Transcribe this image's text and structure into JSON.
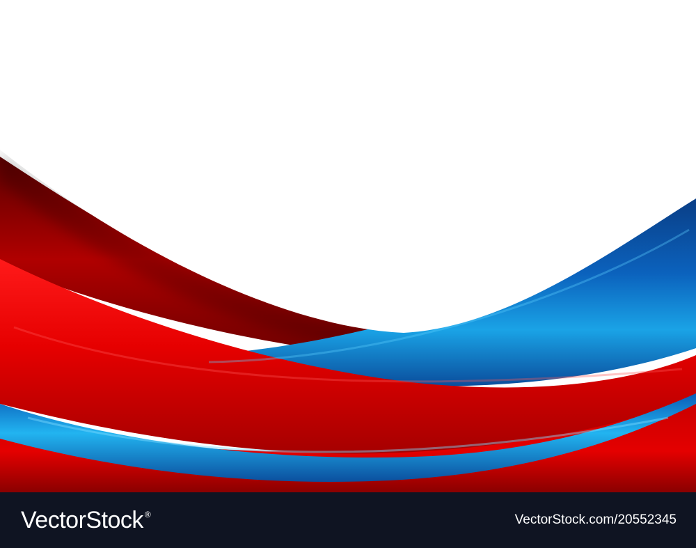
{
  "image": {
    "description_colors": {
      "background": "#ffffff",
      "red_primary": "#e30000",
      "red_dark": "#7a0000",
      "blue_primary": "#0a66c2",
      "blue_light": "#17a6e8",
      "footer_bg": "#0f1422"
    }
  },
  "footer": {
    "logo_text": "VectorStock",
    "logo_mark": "®",
    "stock_id": "VectorStock.com/20552345"
  }
}
